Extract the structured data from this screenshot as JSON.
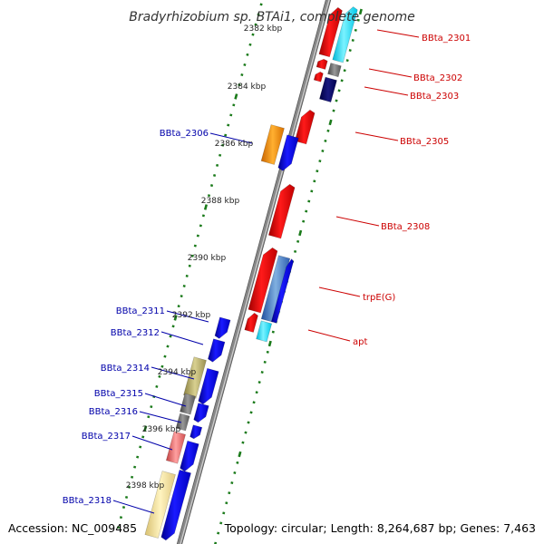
{
  "title": "Bradyrhizobium sp. BTAi1, complete genome",
  "footer": {
    "accession": "Accession: NC_009485",
    "topology": "Topology: circular; Length: 8,264,687 bp; Genes: 7,463"
  },
  "scale_labels": [
    "2382 kbp",
    "2384 kbp",
    "2386 kbp",
    "2388 kbp",
    "2390 kbp",
    "2392 kbp",
    "2394 kbp",
    "2396 kbp",
    "2398 kbp"
  ],
  "gene_labels": {
    "forward": [
      "BBta_2301",
      "BBta_2302",
      "BBta_2303",
      "BBta_2305",
      "BBta_2308",
      "trpE(G)",
      "apt"
    ],
    "reverse": [
      "BBta_2306",
      "BBta_2311",
      "BBta_2312",
      "BBta_2314",
      "BBta_2315",
      "BBta_2316",
      "BBta_2317",
      "BBta_2318"
    ]
  },
  "colors": {
    "forward_label": "#cc0000",
    "reverse_label": "#0000aa",
    "backbone": "#888888",
    "tick": "#1a7a1a"
  }
}
